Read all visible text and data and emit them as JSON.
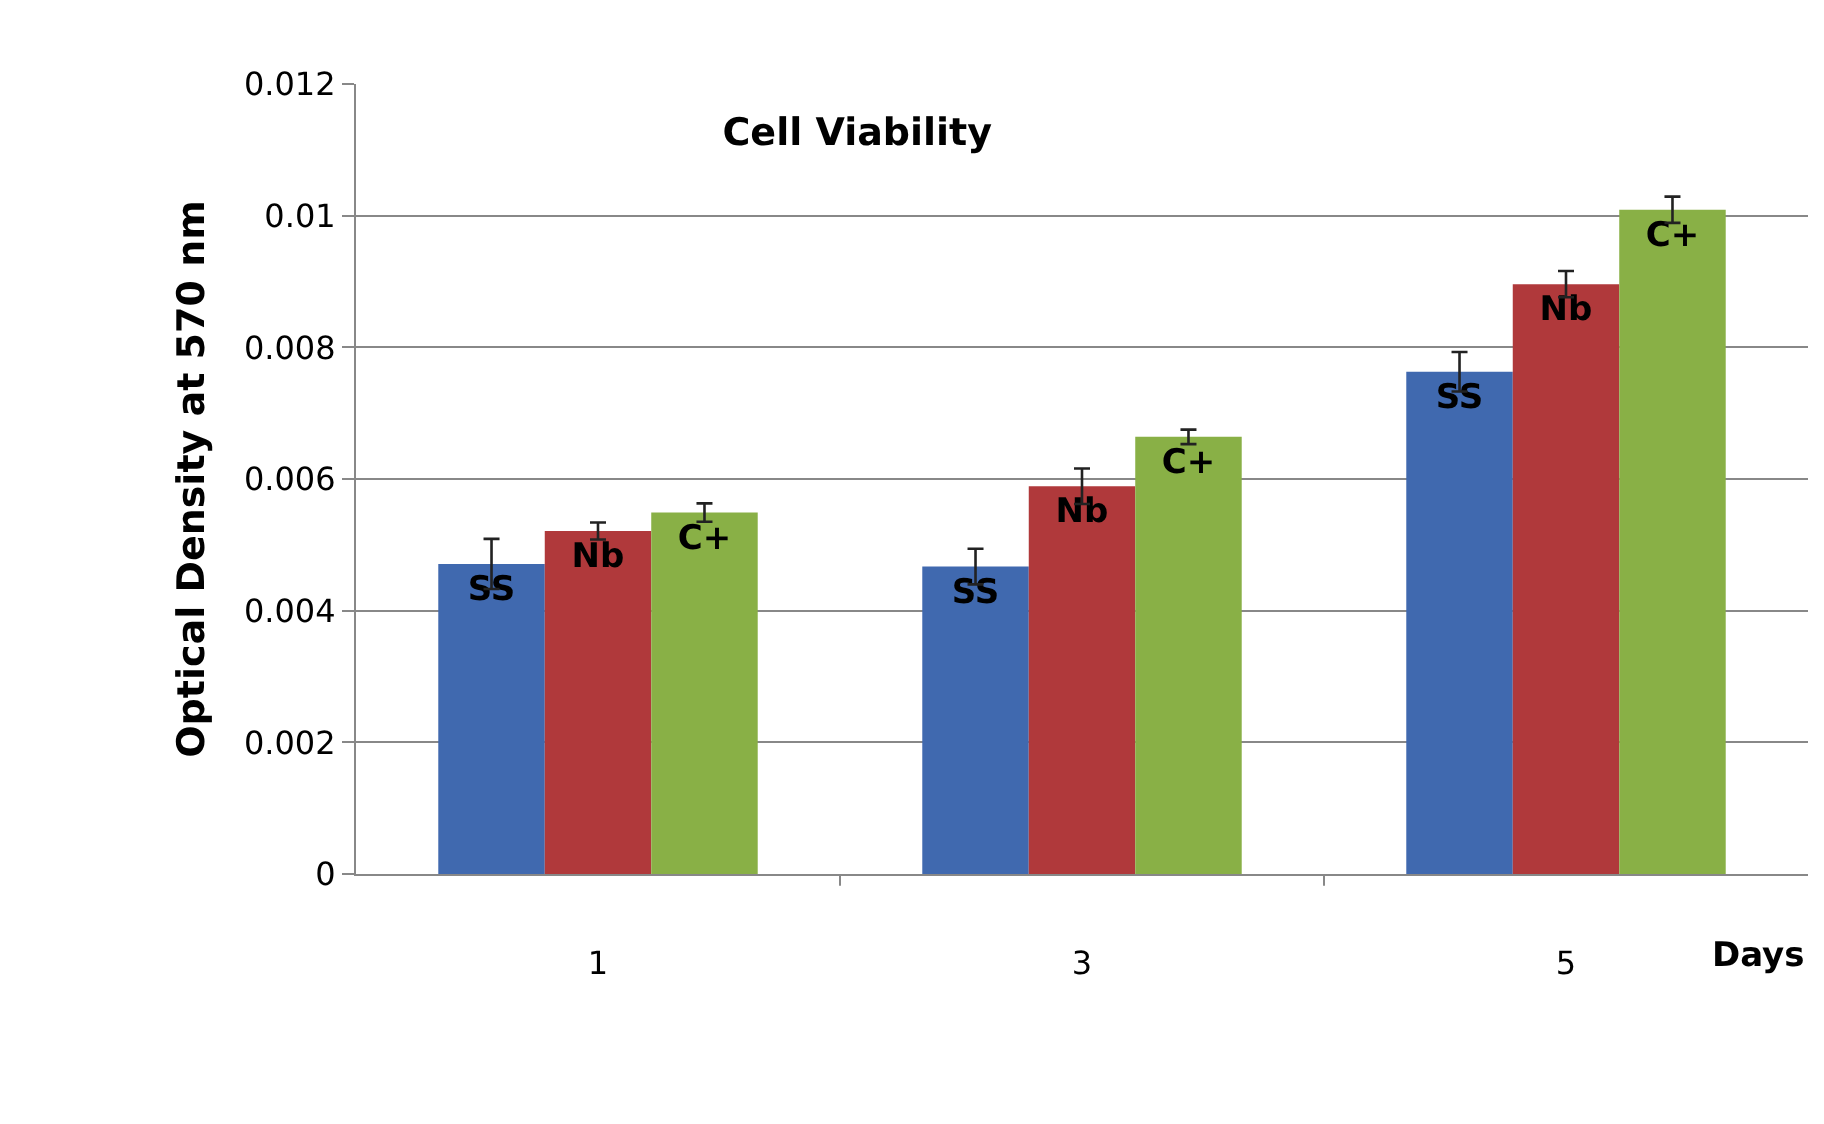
{
  "chart_data": {
    "type": "bar",
    "title": "Cell Viability",
    "xlabel": "Days",
    "ylabel": "Optical Density at 570 nm",
    "categories": [
      "1",
      "3",
      "5"
    ],
    "series": [
      {
        "name": "SS",
        "color": "#4069af",
        "values": [
          0.00471,
          0.00467,
          0.00763
        ],
        "errors": [
          0.00038,
          0.00027,
          0.0003
        ]
      },
      {
        "name": "Nb",
        "color": "#b0393b",
        "values": [
          0.00521,
          0.00589,
          0.00896
        ],
        "errors": [
          0.00013,
          0.00027,
          0.0002
        ]
      },
      {
        "name": "C+",
        "color": "#89b046",
        "values": [
          0.00549,
          0.00664,
          0.01009
        ],
        "errors": [
          0.00014,
          0.00011,
          0.0002
        ]
      }
    ],
    "ylim": [
      0,
      0.012
    ],
    "yticks": [
      {
        "value": 0,
        "label": "0"
      },
      0.002,
      0.004,
      0.006,
      0.008,
      {
        "value": 0.01,
        "label": "0.01"
      },
      0.012
    ],
    "grid": "y",
    "legend": false
  }
}
